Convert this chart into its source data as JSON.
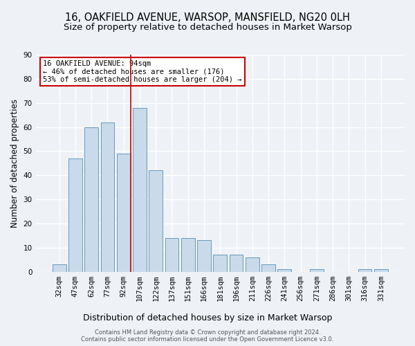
{
  "title": "16, OAKFIELD AVENUE, WARSOP, MANSFIELD, NG20 0LH",
  "subtitle": "Size of property relative to detached houses in Market Warsop",
  "xlabel": "Distribution of detached houses by size in Market Warsop",
  "ylabel": "Number of detached properties",
  "categories": [
    "32sqm",
    "47sqm",
    "62sqm",
    "77sqm",
    "92sqm",
    "107sqm",
    "122sqm",
    "137sqm",
    "151sqm",
    "166sqm",
    "181sqm",
    "196sqm",
    "211sqm",
    "226sqm",
    "241sqm",
    "256sqm",
    "271sqm",
    "286sqm",
    "301sqm",
    "316sqm",
    "331sqm"
  ],
  "values": [
    3,
    47,
    60,
    62,
    49,
    68,
    42,
    14,
    14,
    13,
    7,
    7,
    6,
    3,
    1,
    0,
    1,
    0,
    0,
    1,
    1
  ],
  "bar_color": "#c9daea",
  "bar_edge_color": "#6699bb",
  "highlight_line_index": 4,
  "annotation_title": "16 OAKFIELD AVENUE: 94sqm",
  "annotation_line1": "← 46% of detached houses are smaller (176)",
  "annotation_line2": "53% of semi-detached houses are larger (204) →",
  "annotation_box_color": "#ffffff",
  "annotation_box_edge_color": "#cc0000",
  "ylim": [
    0,
    90
  ],
  "yticks": [
    0,
    10,
    20,
    30,
    40,
    50,
    60,
    70,
    80,
    90
  ],
  "footer_line1": "Contains HM Land Registry data © Crown copyright and database right 2024.",
  "footer_line2": "Contains public sector information licensed under the Open Government Licence v3.0.",
  "bg_color": "#eef2f7",
  "grid_color": "#ffffff",
  "title_fontsize": 10.5,
  "subtitle_fontsize": 9.5,
  "xlabel_fontsize": 9,
  "ylabel_fontsize": 8.5,
  "tick_fontsize": 7.5,
  "annotation_fontsize": 7.5,
  "footer_fontsize": 6
}
